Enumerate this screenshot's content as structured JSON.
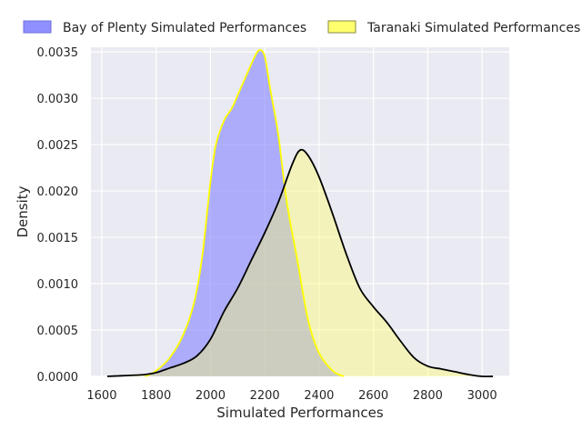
{
  "chart_data": {
    "type": "area",
    "title": "",
    "xlabel": "Simulated Performances",
    "ylabel": "Density",
    "xlim": [
      1560,
      3100
    ],
    "ylim": [
      0,
      0.00355
    ],
    "x_ticks": [
      1600,
      1800,
      2000,
      2200,
      2400,
      2600,
      2800,
      3000
    ],
    "y_ticks": [
      0.0,
      0.0005,
      0.001,
      0.0015,
      0.002,
      0.0025,
      0.003,
      0.0035
    ],
    "y_tick_labels": [
      "0.0000",
      "0.0005",
      "0.0010",
      "0.0015",
      "0.0020",
      "0.0025",
      "0.0030",
      "0.0035"
    ],
    "grid": true,
    "legend_position": "top",
    "series": [
      {
        "name": "Bay of Plenty Simulated Performances",
        "fill_color": "#8f8fff",
        "fill_opacity": 0.68,
        "line_color": "#ffff00",
        "points": [
          [
            1760,
            0.0
          ],
          [
            1800,
            6e-05
          ],
          [
            1850,
            0.0002
          ],
          [
            1900,
            0.00045
          ],
          [
            1940,
            0.0008
          ],
          [
            1970,
            0.0013
          ],
          [
            2000,
            0.0021
          ],
          [
            2020,
            0.0025
          ],
          [
            2050,
            0.00276
          ],
          [
            2080,
            0.0029
          ],
          [
            2110,
            0.0031
          ],
          [
            2140,
            0.0033
          ],
          [
            2160,
            0.00343
          ],
          [
            2180,
            0.00352
          ],
          [
            2200,
            0.00345
          ],
          [
            2220,
            0.0031
          ],
          [
            2250,
            0.0026
          ],
          [
            2280,
            0.0019
          ],
          [
            2320,
            0.00125
          ],
          [
            2360,
            0.0006
          ],
          [
            2400,
            0.00025
          ],
          [
            2450,
            6e-05
          ],
          [
            2490,
            0.0
          ]
        ]
      },
      {
        "name": "Taranaki Simulated Performances",
        "fill_color": "#ffff66",
        "fill_opacity": 0.4,
        "line_color": "#000000",
        "points": [
          [
            1620,
            0.0
          ],
          [
            1700,
            1e-05
          ],
          [
            1760,
            2e-05
          ],
          [
            1800,
            4e-05
          ],
          [
            1850,
            9e-05
          ],
          [
            1900,
            0.00014
          ],
          [
            1950,
            0.00022
          ],
          [
            2000,
            0.0004
          ],
          [
            2050,
            0.0007
          ],
          [
            2100,
            0.00095
          ],
          [
            2150,
            0.00125
          ],
          [
            2200,
            0.00155
          ],
          [
            2250,
            0.00188
          ],
          [
            2300,
            0.00228
          ],
          [
            2330,
            0.00244
          ],
          [
            2360,
            0.00238
          ],
          [
            2400,
            0.00215
          ],
          [
            2450,
            0.00175
          ],
          [
            2500,
            0.00132
          ],
          [
            2550,
            0.00095
          ],
          [
            2600,
            0.00075
          ],
          [
            2650,
            0.00058
          ],
          [
            2700,
            0.00038
          ],
          [
            2750,
            0.0002
          ],
          [
            2800,
            0.00011
          ],
          [
            2850,
            8e-05
          ],
          [
            2900,
            5e-05
          ],
          [
            2950,
            2e-05
          ],
          [
            3000,
            0.0
          ],
          [
            3040,
            0.0
          ]
        ]
      }
    ]
  }
}
